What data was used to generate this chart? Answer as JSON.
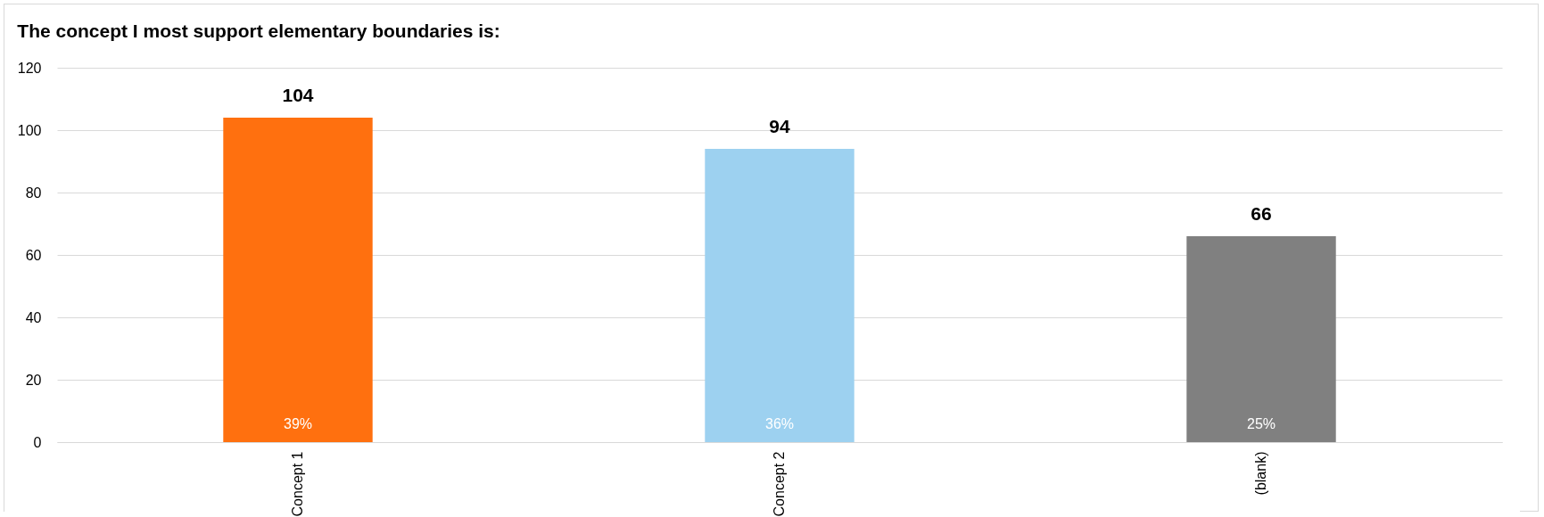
{
  "chart_data": {
    "type": "bar",
    "title": "The concept I most support elementary boundaries is:",
    "categories": [
      "Concept 1",
      "Concept 2",
      "(blank)"
    ],
    "values": [
      104,
      94,
      66
    ],
    "colors": [
      "#ff700f",
      "#9dd1f0",
      "#808080"
    ],
    "ylim": [
      0,
      120
    ],
    "yticks": [
      0,
      20,
      40,
      60,
      80,
      100,
      120
    ],
    "grid": "y",
    "data_labels": true,
    "annotations": [
      {
        "text": "39%",
        "x": "Concept 1",
        "y": 0
      },
      {
        "text": "36%",
        "x": "Concept 2",
        "y": 0
      },
      {
        "text": "25%",
        "x": "(blank)",
        "y": 0
      }
    ]
  }
}
